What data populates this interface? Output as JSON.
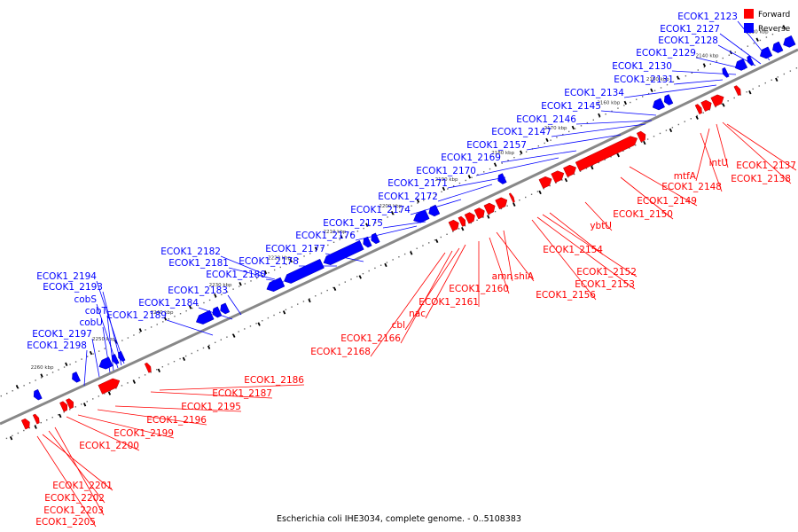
{
  "legend": {
    "forward": {
      "label": "Forward",
      "color": "#ff0000"
    },
    "reverse": {
      "label": "Reverse",
      "color": "#0000ff"
    }
  },
  "caption": "Escherichia coli IHE3034, complete genome. - 0..5108383",
  "ticks": [
    "2130 kbp",
    "2140 kbp",
    "2150 kbp",
    "2160 kbp",
    "2170 kbp",
    "2180 kbp",
    "2190 kbp",
    "2200 kbp",
    "2210 kbp",
    "2220 kbp",
    "2230 kbp",
    "2240 kbp",
    "2250 kbp",
    "2260 kbp"
  ],
  "reverse_labels": [
    "ECOK1_2123",
    "ECOK1_2127",
    "ECOK1_2128",
    "ECOK1_2129",
    "ECOK1_2130",
    "ECOK1_2131",
    "ECOK1_2134",
    "ECOK1_2145",
    "ECOK1_2146",
    "ECOK1_2147",
    "ECOK1_2157",
    "ECOK1_2169",
    "ECOK1_2170",
    "ECOK1_2171",
    "ECOK1_2172",
    "ECOK1_2174",
    "ECOK1_2175",
    "ECOK1_2176",
    "ECOK1_2177",
    "ECOK1_2178",
    "ECOK1_2182",
    "ECOK1_2181",
    "ECOK1_2180",
    "ECOK1_2183",
    "ECOK1_2184",
    "ECOK1_2189",
    "ECOK1_2194",
    "ECOK1_2193",
    "cobS",
    "cobT",
    "cobU",
    "ECOK1_2197",
    "ECOK1_2198"
  ],
  "forward_labels": [
    "intU",
    "mtfA",
    "ECOK1_2137",
    "ECOK1_2138",
    "ECOK1_2148",
    "ECOK1_2149",
    "ECOK1_2150",
    "ybtU",
    "ECOK1_2154",
    "ECOK1_2152",
    "ECOK1_2153",
    "ECOK1_2156",
    "amn",
    "shiA",
    "ECOK1_2160",
    "ECOK1_2161",
    "nac",
    "cbl",
    "ECOK1_2166",
    "ECOK1_2168",
    "ECOK1_2186",
    "ECOK1_2187",
    "ECOK1_2195",
    "ECOK1_2196",
    "ECOK1_2199",
    "ECOK1_2200",
    "ECOK1_2201",
    "ECOK1_2202",
    "ECOK1_2203",
    "ECOK1_2205"
  ]
}
